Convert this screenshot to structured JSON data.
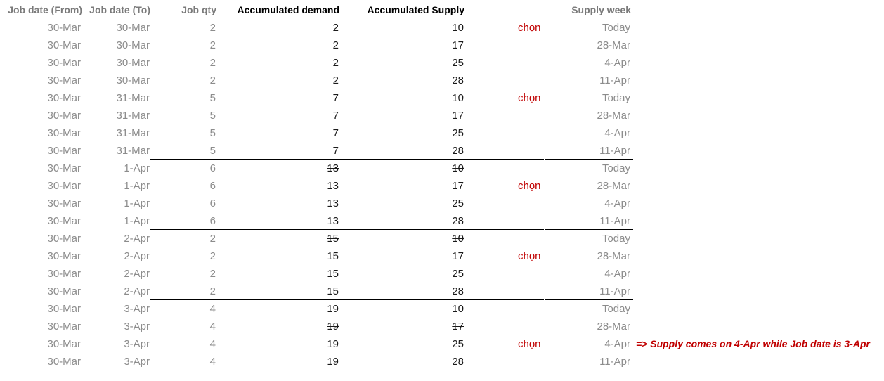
{
  "headers": {
    "job_date_from": "Job date (From)",
    "job_date_to": "Job date (To)",
    "job_qty": "Job qty",
    "accumulated_demand": "Accumulated demand",
    "accumulated_supply": "Accumulated Supply",
    "supply_week": "Supply week"
  },
  "rows": [
    {
      "from": "30-Mar",
      "to": "30-Mar",
      "qty": "2",
      "demand": "2",
      "supply": "10",
      "choose": "chọn",
      "week": "Today"
    },
    {
      "from": "30-Mar",
      "to": "30-Mar",
      "qty": "2",
      "demand": "2",
      "supply": "17",
      "choose": "",
      "week": "28-Mar"
    },
    {
      "from": "30-Mar",
      "to": "30-Mar",
      "qty": "2",
      "demand": "2",
      "supply": "25",
      "choose": "",
      "week": "4-Apr"
    },
    {
      "from": "30-Mar",
      "to": "30-Mar",
      "qty": "2",
      "demand": "2",
      "supply": "28",
      "choose": "",
      "week": "11-Apr"
    },
    {
      "from": "30-Mar",
      "to": "31-Mar",
      "qty": "5",
      "demand": "7",
      "supply": "10",
      "choose": "chọn",
      "week": "Today"
    },
    {
      "from": "30-Mar",
      "to": "31-Mar",
      "qty": "5",
      "demand": "7",
      "supply": "17",
      "choose": "",
      "week": "28-Mar"
    },
    {
      "from": "30-Mar",
      "to": "31-Mar",
      "qty": "5",
      "demand": "7",
      "supply": "25",
      "choose": "",
      "week": "4-Apr"
    },
    {
      "from": "30-Mar",
      "to": "31-Mar",
      "qty": "5",
      "demand": "7",
      "supply": "28",
      "choose": "",
      "week": "11-Apr"
    },
    {
      "from": "30-Mar",
      "to": "1-Apr",
      "qty": "6",
      "demand": "13",
      "supply": "10",
      "choose": "",
      "week": "Today",
      "strike": true
    },
    {
      "from": "30-Mar",
      "to": "1-Apr",
      "qty": "6",
      "demand": "13",
      "supply": "17",
      "choose": "chọn",
      "week": "28-Mar"
    },
    {
      "from": "30-Mar",
      "to": "1-Apr",
      "qty": "6",
      "demand": "13",
      "supply": "25",
      "choose": "",
      "week": "4-Apr"
    },
    {
      "from": "30-Mar",
      "to": "1-Apr",
      "qty": "6",
      "demand": "13",
      "supply": "28",
      "choose": "",
      "week": "11-Apr"
    },
    {
      "from": "30-Mar",
      "to": "2-Apr",
      "qty": "2",
      "demand": "15",
      "supply": "10",
      "choose": "",
      "week": "Today",
      "strike": true
    },
    {
      "from": "30-Mar",
      "to": "2-Apr",
      "qty": "2",
      "demand": "15",
      "supply": "17",
      "choose": "chọn",
      "week": "28-Mar"
    },
    {
      "from": "30-Mar",
      "to": "2-Apr",
      "qty": "2",
      "demand": "15",
      "supply": "25",
      "choose": "",
      "week": "4-Apr"
    },
    {
      "from": "30-Mar",
      "to": "2-Apr",
      "qty": "2",
      "demand": "15",
      "supply": "28",
      "choose": "",
      "week": "11-Apr"
    },
    {
      "from": "30-Mar",
      "to": "3-Apr",
      "qty": "4",
      "demand": "19",
      "supply": "10",
      "choose": "",
      "week": "Today",
      "strike": true
    },
    {
      "from": "30-Mar",
      "to": "3-Apr",
      "qty": "4",
      "demand": "19",
      "supply": "17",
      "choose": "",
      "week": "28-Mar",
      "strike": true
    },
    {
      "from": "30-Mar",
      "to": "3-Apr",
      "qty": "4",
      "demand": "19",
      "supply": "25",
      "choose": "chọn",
      "week": "4-Apr"
    },
    {
      "from": "30-Mar",
      "to": "3-Apr",
      "qty": "4",
      "demand": "19",
      "supply": "28",
      "choose": "",
      "week": "11-Apr"
    }
  ],
  "note": "=> Supply comes on 4-Apr while Job date is 3-Apr",
  "colors": {
    "label_grey": "#8c8c8c",
    "value_dark": "#1a1a1a",
    "choose_red": "#c00000"
  }
}
